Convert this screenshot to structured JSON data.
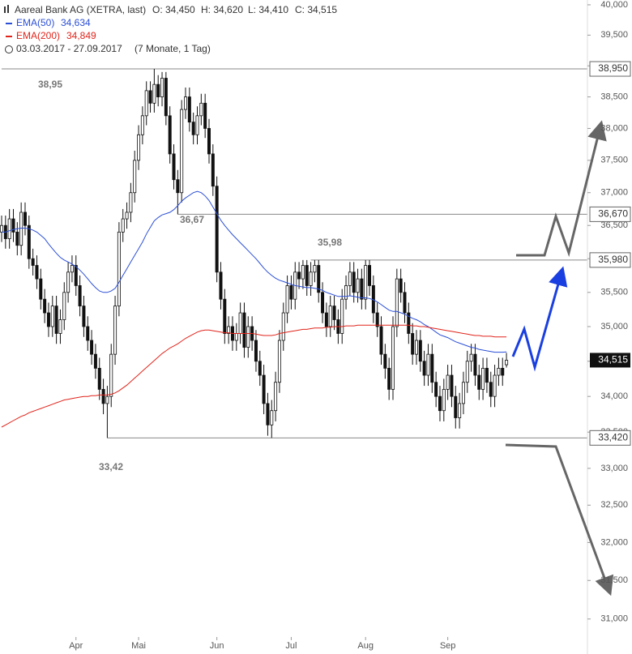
{
  "chart_data": {
    "type": "candlestick",
    "title": "Aareal Bank AG (XETRA, last)",
    "header_items": [
      "O: 34,450",
      "H: 34,620",
      "L: 34,410",
      "C: 34,515"
    ],
    "period": "03.03.2017 - 27.09.2017",
    "period_note": "(7 Monate, 1 Tag)",
    "log_scale": true,
    "ylim": [
      30.78,
      40.08
    ],
    "yticks": [
      {
        "value": 31,
        "label": "31,000"
      },
      {
        "value": 31.5,
        "label": "31,500"
      },
      {
        "value": 32,
        "label": "32,000"
      },
      {
        "value": 32.5,
        "label": "32,500"
      },
      {
        "value": 33,
        "label": "33,000"
      },
      {
        "value": 33.5,
        "label": "33,500"
      },
      {
        "value": 34,
        "label": "34,000"
      },
      {
        "value": 34.5,
        "label": "34,500"
      },
      {
        "value": 35,
        "label": "35,000"
      },
      {
        "value": 35.5,
        "label": "35,500"
      },
      {
        "value": 36,
        "label": "36,000"
      },
      {
        "value": 36.5,
        "label": "36,500"
      },
      {
        "value": 37,
        "label": "37,000"
      },
      {
        "value": 37.5,
        "label": "37,500"
      },
      {
        "value": 38,
        "label": "38,000"
      },
      {
        "value": 38.5,
        "label": "38,500"
      },
      {
        "value": 39,
        "label": "39,000"
      },
      {
        "value": 39.5,
        "label": "39,500"
      },
      {
        "value": 40,
        "label": "40,000"
      }
    ],
    "xticks": [
      {
        "value": 19,
        "label": "Apr"
      },
      {
        "value": 35,
        "label": "Mai"
      },
      {
        "value": 55,
        "label": "Jun"
      },
      {
        "value": 74,
        "label": "Jul"
      },
      {
        "value": 93,
        "label": "Aug"
      },
      {
        "value": 114,
        "label": "Sep"
      }
    ],
    "up_color": "#ffffff",
    "down_color": "#111111",
    "open": [
      36.4,
      36.5,
      36.3,
      36.6,
      36.4,
      36.2,
      36.7,
      36.5,
      36.0,
      35.9,
      35.7,
      35.4,
      35.2,
      35.0,
      35.3,
      34.9,
      35.1,
      35.5,
      35.8,
      35.9,
      35.6,
      35.3,
      35.0,
      34.8,
      34.6,
      34.4,
      34.1,
      33.9,
      34.0,
      34.6,
      35.3,
      36.4,
      36.6,
      36.7,
      37.0,
      37.5,
      37.9,
      38.2,
      38.6,
      38.4,
      38.7,
      38.5,
      38.8,
      38.2,
      37.6,
      37.2,
      37.0,
      38.3,
      38.5,
      38.1,
      37.9,
      38.2,
      38.4,
      38.0,
      37.6,
      37.1,
      35.8,
      35.4,
      34.9,
      35.0,
      34.8,
      34.9,
      35.2,
      34.7,
      35.0,
      34.8,
      34.5,
      34.3,
      33.9,
      33.6,
      33.8,
      34.2,
      34.8,
      35.2,
      35.6,
      35.4,
      35.8,
      35.7,
      35.9,
      35.6,
      35.8,
      35.9,
      35.5,
      35.2,
      35.0,
      35.3,
      35.1,
      34.9,
      35.4,
      35.6,
      35.8,
      35.5,
      35.7,
      35.4,
      35.9,
      35.6,
      35.2,
      35.0,
      34.6,
      34.4,
      34.1,
      35.0,
      35.7,
      35.5,
      35.2,
      34.9,
      34.6,
      34.8,
      34.5,
      34.3,
      34.6,
      34.2,
      34.0,
      33.8,
      34.1,
      34.3,
      34.0,
      33.7,
      33.9,
      34.2,
      34.5,
      34.6,
      34.3,
      34.1,
      34.4,
      34.2,
      34.0,
      34.3,
      34.4,
      34.45
    ],
    "high": [
      36.65,
      36.65,
      36.75,
      36.75,
      36.55,
      36.85,
      36.85,
      36.65,
      36.15,
      36.05,
      35.85,
      35.55,
      35.35,
      35.45,
      35.45,
      35.25,
      35.65,
      35.95,
      36.05,
      36.05,
      35.75,
      35.45,
      35.15,
      34.95,
      34.75,
      34.55,
      34.25,
      34.15,
      34.75,
      35.45,
      36.55,
      36.75,
      36.85,
      37.15,
      37.65,
      38.05,
      38.35,
      38.75,
      38.75,
      38.95,
      38.85,
      38.9,
      38.9,
      38.35,
      37.75,
      37.35,
      38.45,
      38.65,
      38.65,
      38.25,
      38.35,
      38.55,
      38.55,
      38.15,
      37.75,
      37.25,
      35.95,
      35.55,
      35.15,
      35.15,
      35.05,
      35.35,
      35.35,
      35.15,
      35.15,
      34.95,
      34.65,
      34.45,
      34.05,
      33.95,
      34.35,
      34.95,
      35.35,
      35.75,
      35.75,
      35.95,
      35.95,
      35.98,
      35.98,
      35.95,
      35.98,
      35.98,
      35.65,
      35.35,
      35.45,
      35.45,
      35.25,
      35.55,
      35.75,
      35.95,
      35.95,
      35.85,
      35.85,
      35.98,
      35.98,
      35.75,
      35.35,
      35.15,
      34.75,
      34.55,
      35.15,
      35.85,
      35.85,
      35.65,
      35.35,
      35.05,
      34.95,
      34.95,
      34.65,
      34.75,
      34.75,
      34.35,
      34.15,
      34.25,
      34.45,
      34.45,
      34.15,
      34.05,
      34.35,
      34.65,
      34.75,
      34.75,
      34.45,
      34.55,
      34.55,
      34.35,
      34.45,
      34.55,
      34.55,
      34.62
    ],
    "low": [
      36.25,
      36.15,
      36.15,
      36.25,
      36.05,
      36.05,
      36.35,
      35.85,
      35.75,
      35.55,
      35.25,
      35.05,
      34.85,
      34.85,
      34.75,
      34.75,
      34.95,
      35.35,
      35.65,
      35.45,
      35.15,
      34.85,
      34.65,
      34.45,
      34.25,
      33.95,
      33.75,
      33.42,
      33.85,
      34.45,
      35.15,
      36.25,
      36.45,
      36.55,
      36.85,
      37.35,
      37.75,
      38.05,
      38.25,
      38.25,
      38.35,
      38.35,
      38.05,
      37.45,
      37.05,
      36.67,
      36.85,
      38.15,
      37.95,
      37.75,
      37.75,
      38.05,
      37.85,
      37.45,
      36.95,
      35.65,
      35.25,
      34.75,
      34.75,
      34.65,
      34.65,
      34.75,
      34.55,
      34.55,
      34.65,
      34.35,
      34.15,
      33.75,
      33.45,
      33.42,
      33.65,
      34.05,
      34.65,
      35.05,
      35.25,
      35.25,
      35.55,
      35.55,
      35.45,
      35.45,
      35.65,
      35.35,
      35.05,
      34.85,
      34.85,
      34.95,
      34.75,
      34.75,
      35.25,
      35.45,
      35.35,
      35.35,
      35.25,
      35.25,
      35.45,
      35.05,
      34.85,
      34.45,
      34.25,
      33.95,
      33.95,
      34.85,
      35.35,
      35.05,
      34.75,
      34.45,
      34.45,
      34.35,
      34.15,
      34.15,
      34.05,
      33.85,
      33.65,
      33.65,
      33.95,
      33.85,
      33.55,
      33.55,
      33.75,
      34.05,
      34.35,
      34.15,
      33.95,
      33.95,
      34.05,
      33.85,
      33.85,
      34.15,
      34.15,
      34.41
    ],
    "close": [
      36.5,
      36.3,
      36.6,
      36.4,
      36.2,
      36.7,
      36.5,
      36.0,
      35.9,
      35.7,
      35.4,
      35.2,
      35.0,
      35.3,
      34.9,
      35.1,
      35.5,
      35.8,
      35.9,
      35.6,
      35.3,
      35.0,
      34.8,
      34.6,
      34.4,
      34.1,
      33.9,
      34.0,
      34.6,
      35.3,
      36.4,
      36.6,
      36.7,
      37.0,
      37.5,
      37.9,
      38.2,
      38.6,
      38.4,
      38.7,
      38.5,
      38.8,
      38.2,
      37.6,
      37.2,
      37.0,
      38.3,
      38.5,
      38.1,
      37.9,
      38.2,
      38.4,
      38.0,
      37.6,
      37.1,
      35.8,
      35.4,
      34.9,
      35.0,
      34.8,
      34.9,
      35.2,
      34.7,
      35.0,
      34.8,
      34.5,
      34.3,
      33.9,
      33.6,
      33.8,
      34.2,
      34.8,
      35.2,
      35.6,
      35.4,
      35.8,
      35.7,
      35.9,
      35.6,
      35.8,
      35.9,
      35.5,
      35.2,
      35.0,
      35.3,
      35.1,
      34.9,
      35.4,
      35.6,
      35.8,
      35.5,
      35.7,
      35.4,
      35.9,
      35.6,
      35.2,
      35.0,
      34.6,
      34.4,
      34.1,
      35.0,
      35.7,
      35.5,
      35.2,
      34.9,
      34.6,
      34.8,
      34.5,
      34.3,
      34.6,
      34.2,
      34.0,
      33.8,
      34.1,
      34.3,
      34.0,
      33.7,
      33.9,
      34.2,
      34.5,
      34.6,
      34.3,
      34.1,
      34.4,
      34.2,
      34.0,
      34.3,
      34.4,
      34.3,
      34.515
    ],
    "series": [
      {
        "name": "EMA(50)",
        "last_label": "34,634",
        "color": "#2b4fd6",
        "values": [
          36.4,
          36.4,
          36.42,
          36.44,
          36.45,
          36.46,
          36.46,
          36.45,
          36.43,
          36.4,
          36.35,
          36.3,
          36.22,
          36.15,
          36.08,
          36.02,
          35.98,
          35.95,
          35.92,
          35.88,
          35.83,
          35.77,
          35.7,
          35.63,
          35.57,
          35.52,
          35.5,
          35.5,
          35.52,
          35.56,
          35.65,
          35.75,
          35.85,
          35.95,
          36.05,
          36.15,
          36.25,
          36.37,
          36.47,
          36.57,
          36.62,
          36.66,
          36.68,
          36.7,
          36.74,
          36.8,
          36.87,
          36.92,
          36.96,
          37.0,
          37.02,
          37.0,
          36.95,
          36.88,
          36.78,
          36.68,
          36.58,
          36.5,
          36.43,
          36.36,
          36.3,
          36.24,
          36.18,
          36.12,
          36.06,
          36.0,
          35.93,
          35.86,
          35.8,
          35.75,
          35.71,
          35.68,
          35.66,
          35.64,
          35.62,
          35.6,
          35.59,
          35.58,
          35.57,
          35.57,
          35.56,
          35.55,
          35.53,
          35.5,
          35.48,
          35.46,
          35.44,
          35.44,
          35.44,
          35.45,
          35.44,
          35.43,
          35.42,
          35.42,
          35.41,
          35.39,
          35.36,
          35.32,
          35.28,
          35.24,
          35.22,
          35.22,
          35.2,
          35.18,
          35.15,
          35.12,
          35.1,
          35.07,
          35.03,
          35.0,
          34.96,
          34.92,
          34.88,
          34.86,
          34.84,
          34.81,
          34.78,
          34.76,
          34.74,
          34.72,
          34.7,
          34.69,
          34.67,
          34.66,
          34.65,
          34.64,
          34.63,
          34.63,
          34.63,
          34.634
        ]
      },
      {
        "name": "EMA(200)",
        "last_label": "34,849",
        "color": "#e0241b",
        "values": [
          33.57,
          33.6,
          33.63,
          33.66,
          33.69,
          33.72,
          33.74,
          33.77,
          33.79,
          33.81,
          33.83,
          33.85,
          33.87,
          33.89,
          33.91,
          33.93,
          33.95,
          33.96,
          33.97,
          33.98,
          33.99,
          34.0,
          34.0,
          34.01,
          34.01,
          34.02,
          34.02,
          34.02,
          34.03,
          34.05,
          34.08,
          34.12,
          34.16,
          34.21,
          34.26,
          34.31,
          34.36,
          34.41,
          34.46,
          34.51,
          34.56,
          34.61,
          34.65,
          34.69,
          34.72,
          34.75,
          34.79,
          34.83,
          34.86,
          34.89,
          34.92,
          34.94,
          34.95,
          34.95,
          34.94,
          34.93,
          34.92,
          34.91,
          34.91,
          34.9,
          34.9,
          34.9,
          34.9,
          34.9,
          34.9,
          34.89,
          34.88,
          34.87,
          34.87,
          34.87,
          34.88,
          34.9,
          34.91,
          34.92,
          34.93,
          34.94,
          34.95,
          34.96,
          34.96,
          34.97,
          34.98,
          34.98,
          34.98,
          34.99,
          34.99,
          35.0,
          35.0,
          35.0,
          35.01,
          35.01,
          35.01,
          35.02,
          35.02,
          35.02,
          35.02,
          35.02,
          35.02,
          35.02,
          35.02,
          35.02,
          35.02,
          35.02,
          35.02,
          35.02,
          35.02,
          35.01,
          35.01,
          35.0,
          35.0,
          34.99,
          34.98,
          34.97,
          34.96,
          34.95,
          34.94,
          34.93,
          34.92,
          34.91,
          34.9,
          34.89,
          34.88,
          34.87,
          34.87,
          34.86,
          34.86,
          34.86,
          34.85,
          34.85,
          34.85,
          34.849
        ]
      }
    ],
    "levels": [
      {
        "value": 38.95,
        "label": "38,950",
        "note": "38,95",
        "from": 0
      },
      {
        "value": 36.67,
        "label": "36,670",
        "note": "36,67",
        "from": 45
      },
      {
        "value": 35.98,
        "label": "35,980",
        "note": "35,98",
        "from": 79
      },
      {
        "value": 33.42,
        "label": "33,420",
        "note": "33,42",
        "from": 27
      }
    ],
    "last_price": {
      "value": 34.515,
      "label": "34,515"
    }
  }
}
